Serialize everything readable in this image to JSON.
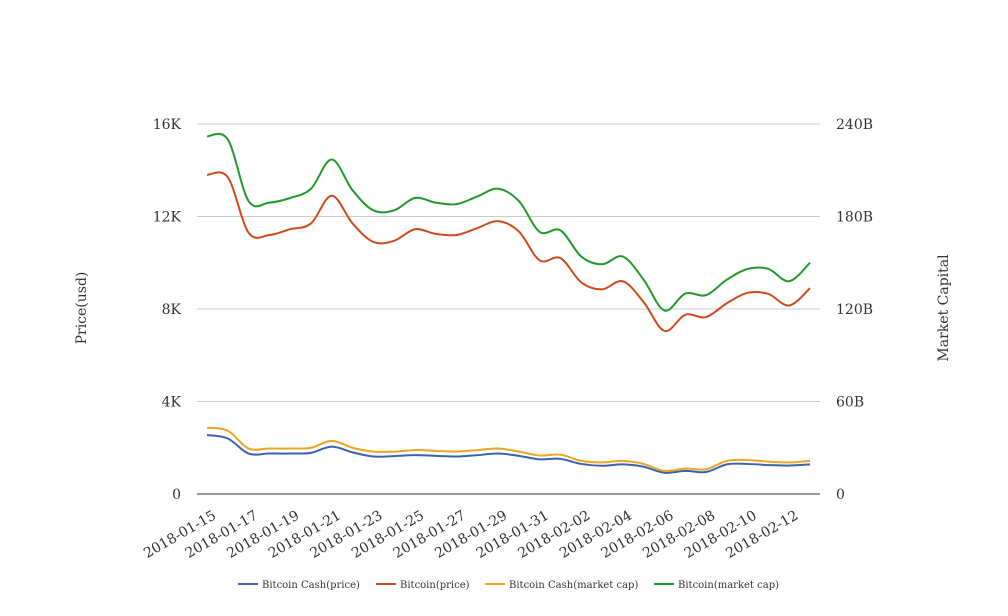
{
  "chart_data": {
    "type": "line",
    "ylabel_left": "Price(usd)",
    "ylabel_right": "Market Capital",
    "x": [
      "2018-01-15",
      "2018-01-16",
      "2018-01-17",
      "2018-01-18",
      "2018-01-19",
      "2018-01-20",
      "2018-01-21",
      "2018-01-22",
      "2018-01-23",
      "2018-01-24",
      "2018-01-25",
      "2018-01-26",
      "2018-01-27",
      "2018-01-28",
      "2018-01-29",
      "2018-01-30",
      "2018-01-31",
      "2018-02-01",
      "2018-02-02",
      "2018-02-03",
      "2018-02-04",
      "2018-02-05",
      "2018-02-06",
      "2018-02-07",
      "2018-02-08",
      "2018-02-09",
      "2018-02-10",
      "2018-02-11",
      "2018-02-12",
      "2018-02-13"
    ],
    "xticks": [
      "2018-01-15",
      "2018-01-17",
      "2018-01-19",
      "2018-01-21",
      "2018-01-23",
      "2018-01-25",
      "2018-01-27",
      "2018-01-29",
      "2018-01-31",
      "2018-02-02",
      "2018-02-04",
      "2018-02-06",
      "2018-02-08",
      "2018-02-10",
      "2018-02-12"
    ],
    "yticks_left": [
      "0",
      "4K",
      "8K",
      "12K",
      "16K"
    ],
    "yticks_right": [
      "0",
      "60B",
      "120B",
      "180B",
      "240B"
    ],
    "ylim_left": [
      0,
      16000
    ],
    "ylim_right": [
      0,
      240000000000
    ],
    "grid": true,
    "legend_position": "bottom",
    "series": [
      {
        "name": "Bitcoin Cash(price)",
        "axis": "left",
        "color": "#3a62b0",
        "values": [
          2550,
          2400,
          1750,
          1750,
          1750,
          1780,
          2050,
          1800,
          1620,
          1640,
          1680,
          1650,
          1620,
          1680,
          1750,
          1650,
          1500,
          1520,
          1300,
          1220,
          1280,
          1180,
          920,
          1000,
          950,
          1280,
          1300,
          1250,
          1230,
          1280
        ]
      },
      {
        "name": "Bitcoin(price)",
        "axis": "left",
        "color": "#d14a1e",
        "values": [
          13800,
          13700,
          11300,
          11200,
          11450,
          11700,
          12900,
          11700,
          10900,
          10950,
          11450,
          11250,
          11200,
          11500,
          11800,
          11350,
          10100,
          10200,
          9150,
          8850,
          9200,
          8300,
          7050,
          7750,
          7650,
          8250,
          8700,
          8650,
          8150,
          8900
        ]
      },
      {
        "name": "Bitcoin Cash(market cap)",
        "axis": "right",
        "color": "#f0a420",
        "values": [
          43000,
          41000,
          29500,
          29500,
          29500,
          30000,
          34500,
          30000,
          27500,
          27500,
          28500,
          28000,
          27500,
          28500,
          29500,
          27500,
          25000,
          25500,
          21500,
          20500,
          21500,
          19500,
          15000,
          16500,
          16000,
          21500,
          22000,
          21000,
          20500,
          21500
        ]
      },
      {
        "name": "Bitcoin(market cap)",
        "axis": "right",
        "color": "#22992a",
        "values": [
          232000,
          230000,
          190000,
          189000,
          192000,
          198000,
          217000,
          197000,
          184000,
          184000,
          192000,
          189000,
          188000,
          193000,
          198000,
          190000,
          170000,
          171000,
          154000,
          149000,
          154000,
          139000,
          119000,
          130000,
          129000,
          139000,
          146000,
          146000,
          138000,
          150000
        ]
      }
    ]
  }
}
